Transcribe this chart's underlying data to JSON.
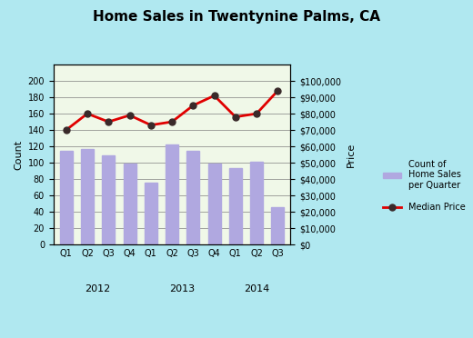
{
  "title": "Home Sales in Twentynine Palms, CA",
  "background_outer": "#b0e8f0",
  "background_inner": "#f0f8e8",
  "bar_color": "#b0a8e0",
  "line_color": "#e00000",
  "marker_color": "#3a2a2a",
  "quarters": [
    "Q1",
    "Q2",
    "Q3",
    "Q4",
    "Q1",
    "Q2",
    "Q3",
    "Q4",
    "Q1",
    "Q2",
    "Q3"
  ],
  "years": [
    "2012",
    "2013",
    "2014"
  ],
  "bar_values": [
    115,
    117,
    109,
    99,
    76,
    122,
    115,
    99,
    93,
    101,
    46
  ],
  "price_values": [
    70000,
    80000,
    75000,
    79000,
    73000,
    75000,
    85000,
    91000,
    78000,
    80000,
    94000
  ],
  "left_ylim": [
    0,
    220
  ],
  "left_yticks": [
    0,
    20,
    40,
    60,
    80,
    100,
    120,
    140,
    160,
    180,
    200
  ],
  "right_ylim": [
    0,
    110000
  ],
  "right_yticks": [
    0,
    10000,
    20000,
    30000,
    40000,
    50000,
    60000,
    70000,
    80000,
    90000,
    100000
  ],
  "ylabel_left": "Count",
  "ylabel_right": "Price",
  "legend_bar_label": "Count of\nHome Sales\nper Quarter",
  "legend_line_label": "Median Price"
}
